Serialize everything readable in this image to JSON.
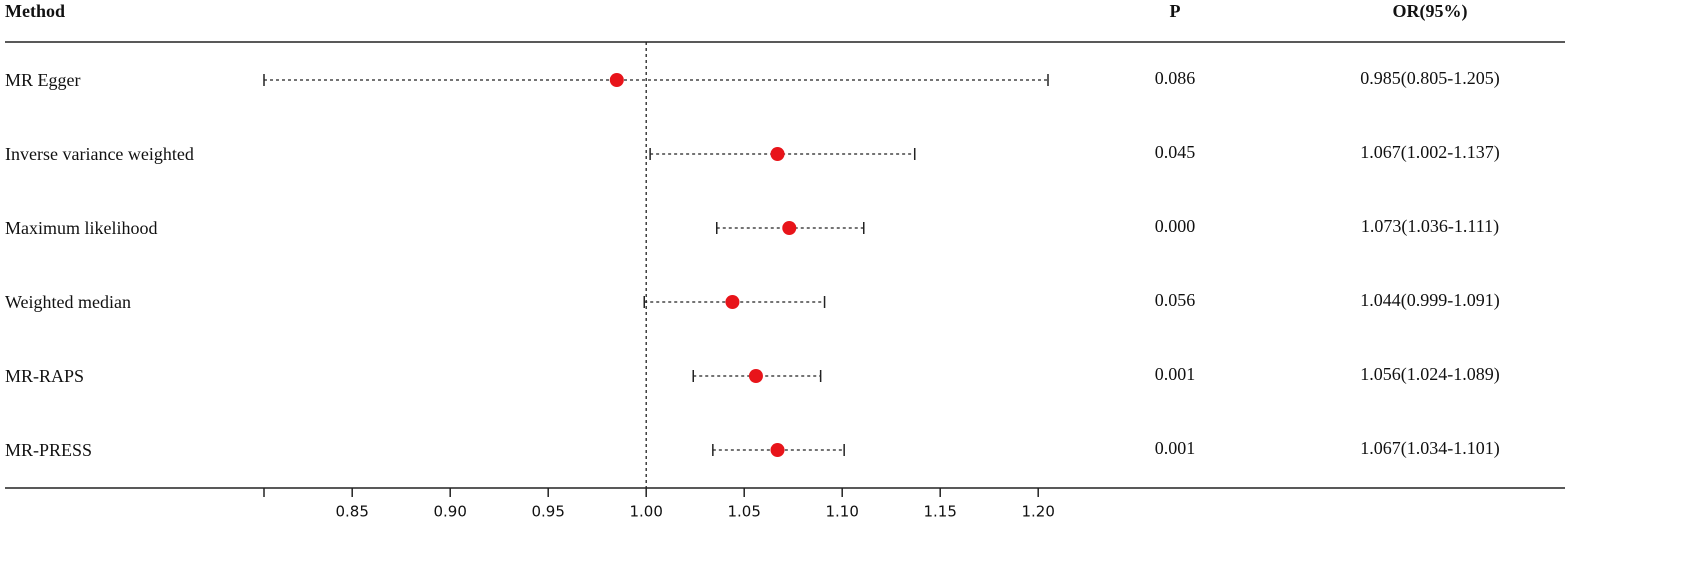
{
  "chart_data": {
    "type": "forest",
    "headers": {
      "method": "Method",
      "p": "P",
      "or": "OR(95%)"
    },
    "categories": [
      "MR Egger",
      "Inverse variance weighted",
      "Maximum likelihood",
      "Weighted median",
      "MR-RAPS",
      "MR-PRESS"
    ],
    "or": [
      0.985,
      1.067,
      1.073,
      1.044,
      1.056,
      1.067
    ],
    "lower": [
      0.805,
      1.002,
      1.036,
      0.999,
      1.024,
      1.034
    ],
    "upper": [
      1.205,
      1.137,
      1.111,
      1.091,
      1.089,
      1.101
    ],
    "p_values": [
      "0.086",
      "0.045",
      "0.000",
      "0.056",
      "0.001",
      "0.001"
    ],
    "value_labels": [
      "0.985(0.805-1.205)",
      "1.067(1.002-1.137)",
      "1.073(1.036-1.111)",
      "1.044(0.999-1.091)",
      "1.056(1.024-1.089)",
      "1.067(1.034-1.101)"
    ],
    "ref": 1,
    "color": "#e8141a",
    "xlim": [
      0.805,
      1.205
    ],
    "xticks": [
      0.85,
      {
        "value": 0.9,
        "label": "0.90"
      },
      0.95,
      {
        "value": 1,
        "label": "1.00"
      },
      1.05,
      {
        "value": 1.1,
        "label": "1.10"
      },
      1.15,
      {
        "value": 1.2,
        "label": "1.20"
      }
    ]
  }
}
